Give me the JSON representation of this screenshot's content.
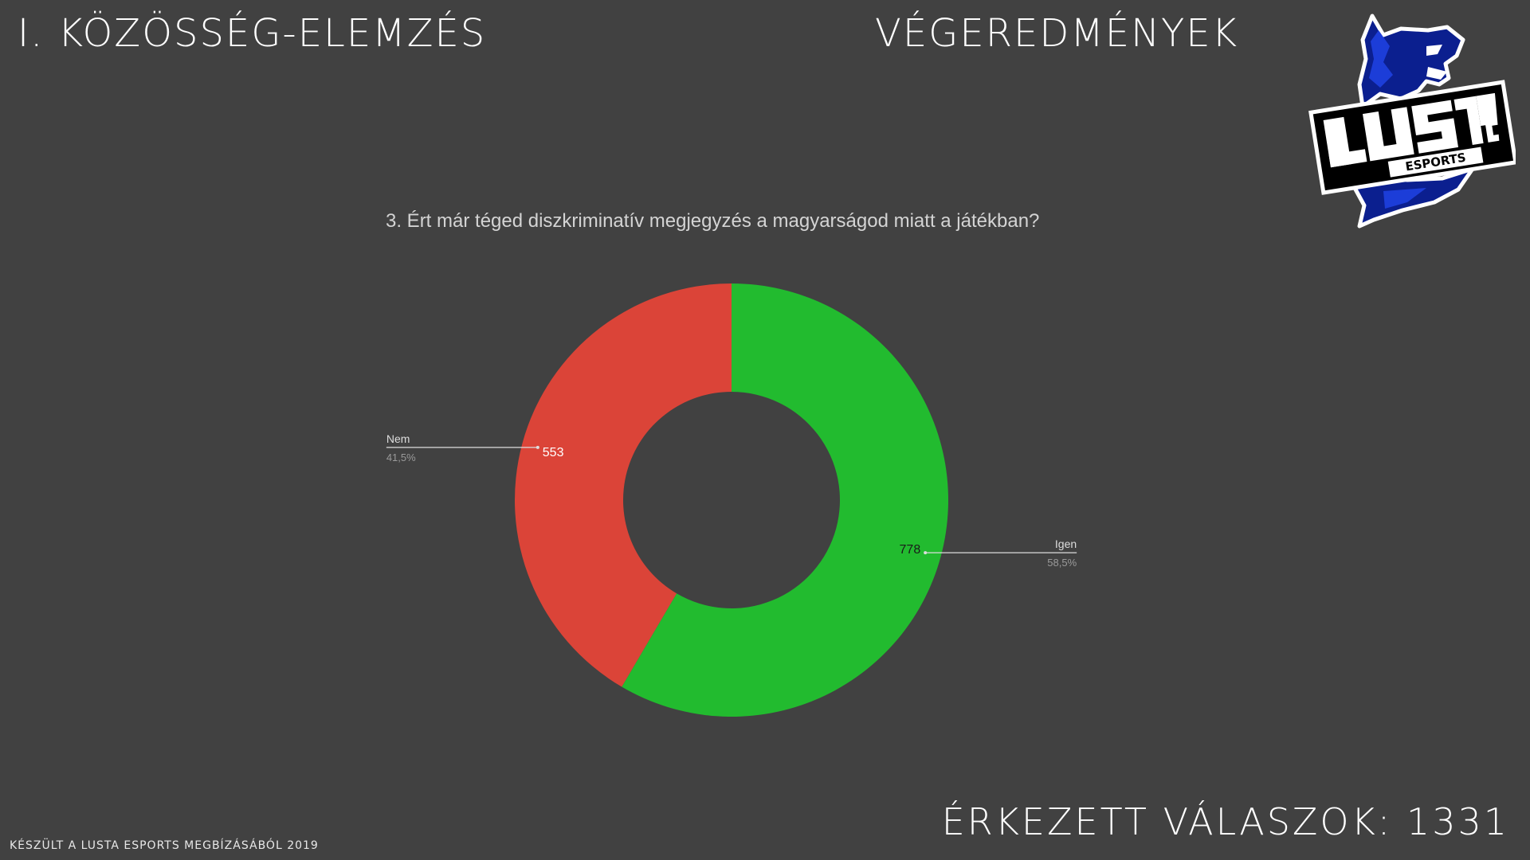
{
  "header": {
    "section_title": "I. KÖZÖSSÉG-ELEMZÉS",
    "results_title": "VÉGEREDMÉNYEK"
  },
  "logo": {
    "name": "LUSTA",
    "subtitle": "ESPORTS"
  },
  "chart_data": {
    "type": "pie",
    "title": "3. Ért már téged diszkriminatív megjegyzés a magyarságod miatt a játékban?",
    "donut": true,
    "slices": [
      {
        "label": "Igen",
        "value": 778,
        "percent": "58,5%",
        "color": "#22bb2f"
      },
      {
        "label": "Nem",
        "value": 553,
        "percent": "41,5%",
        "color": "#db4438"
      }
    ]
  },
  "footer": {
    "note": "KÉSZÜLT A LUSTA ESPORTS MEGBÍZÁSÁBÓL   2019",
    "responses_label": "ÉRKEZETT VÁLASZOK: 1331"
  },
  "colors": {
    "background": "#414141",
    "igen": "#22bb2f",
    "nem": "#db4438"
  }
}
